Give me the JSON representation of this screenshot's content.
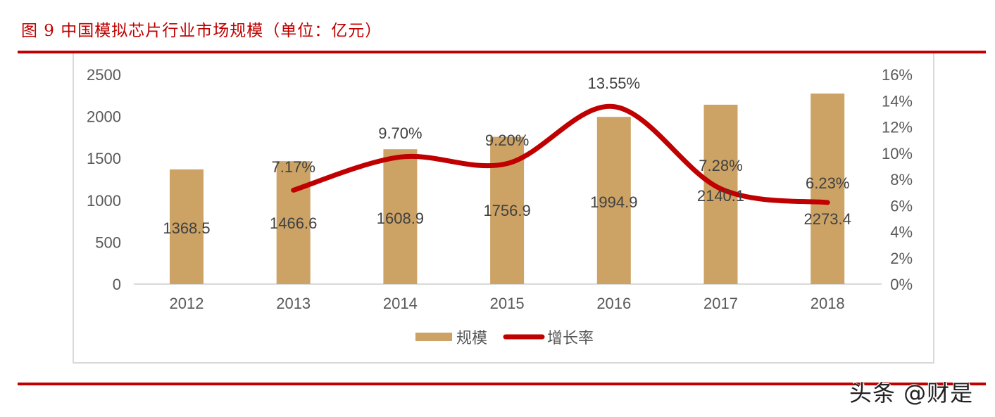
{
  "figure": {
    "title": "图 9 中国模拟芯片行业市场规模（单位：亿元）",
    "watermark": "头条 @财是"
  },
  "colors": {
    "bar": "#cca365",
    "line": "#c00000",
    "rule": "#c00000",
    "axis_text": "#595959",
    "gridline": "#d9d9d9"
  },
  "chart_data": {
    "type": "bar+line",
    "title": "中国模拟芯片行业市场规模（单位：亿元）",
    "categories": [
      "2012",
      "2013",
      "2014",
      "2015",
      "2016",
      "2017",
      "2018"
    ],
    "series": [
      {
        "name": "规模",
        "type": "bar",
        "axis": "left",
        "values": [
          1368.5,
          1466.6,
          1608.9,
          1756.9,
          1994.9,
          2140.1,
          2273.4
        ],
        "labels": [
          "1368.5",
          "1466.6",
          "1608.9",
          "1756.9",
          "1994.9",
          "2140.1",
          "2273.4"
        ]
      },
      {
        "name": "增长率",
        "type": "line",
        "axis": "right",
        "smooth": true,
        "values": [
          null,
          7.17,
          9.7,
          9.2,
          13.55,
          7.28,
          6.23
        ],
        "labels": [
          "",
          "7.17%",
          "9.70%",
          "9.20%",
          "13.55%",
          "7.28%",
          "6.23%"
        ]
      }
    ],
    "left_axis": {
      "ylim": [
        0,
        2500
      ],
      "ticks": [
        "0",
        "500",
        "1000",
        "1500",
        "2000",
        "2500"
      ]
    },
    "right_axis": {
      "ylim": [
        0,
        16
      ],
      "ticks": [
        "0%",
        "2%",
        "4%",
        "6%",
        "8%",
        "10%",
        "12%",
        "14%",
        "16%"
      ]
    },
    "xlabel": "",
    "ylabel": "",
    "grid": false,
    "legend": {
      "position": "bottom",
      "entries": [
        "规模",
        "增长率"
      ]
    }
  }
}
